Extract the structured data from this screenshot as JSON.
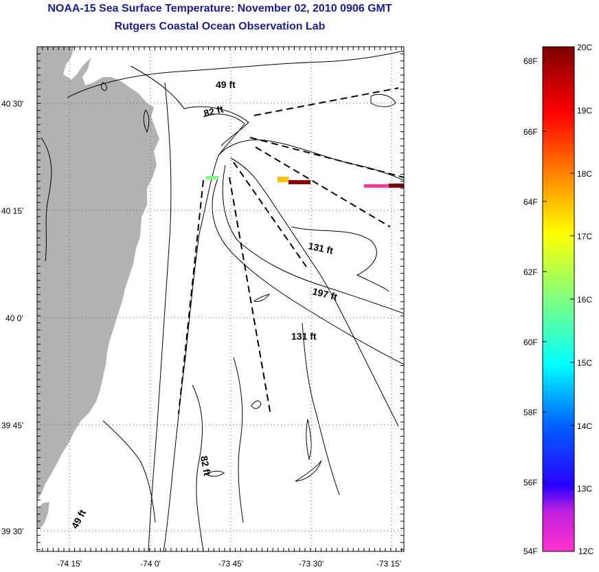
{
  "header": {
    "title": "NOAA-15 Sea Surface Temperature:  November 02, 2010 0906 GMT",
    "subtitle": "Rutgers Coastal Ocean Observation Lab"
  },
  "map": {
    "lat_ticks": [
      "40 30'",
      "40 15'",
      "40 0'",
      "39 45'",
      "39 30'"
    ],
    "lon_ticks": [
      "-74 15'",
      "-74 0'",
      "-73 45'",
      "-73 30'",
      "-73 15'"
    ],
    "depth_labels": [
      "49 ft",
      "82 ft",
      "131 ft",
      "197 ft",
      "131 ft",
      "82 ft",
      "49 ft"
    ],
    "colors": {
      "land": "#b2b2b2",
      "title": "#1a1aa0",
      "contour": "#000000"
    }
  },
  "colorbar": {
    "fahrenheit": [
      "68F",
      "66F",
      "64F",
      "62F",
      "60F",
      "58F",
      "56F",
      "54F"
    ],
    "celsius": [
      "20C",
      "19C",
      "18C",
      "17C",
      "16C",
      "15C",
      "14C",
      "13C",
      "12C"
    ],
    "range_c": [
      12,
      20
    ],
    "palette": [
      "#ff33cc",
      "#8a2be2",
      "#0000ff",
      "#00ffff",
      "#7fff7f",
      "#ffff00",
      "#ff8000",
      "#ff0000",
      "#7f0000"
    ]
  }
}
